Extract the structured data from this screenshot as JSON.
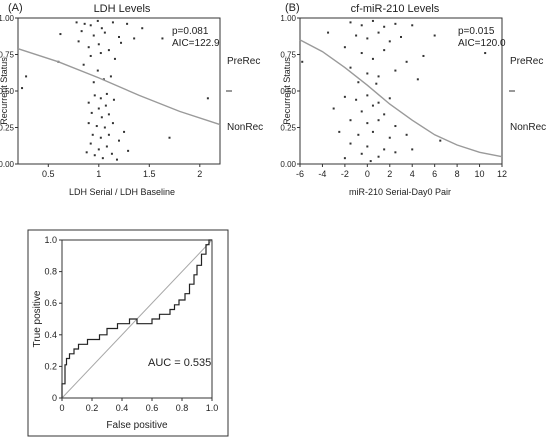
{
  "chart_data": [
    {
      "type": "scatter",
      "panel": "(A)",
      "title": "LDH Levels",
      "xlabel": "LDH Serial / LDH Baseline",
      "ylabel": "Recurrent Status",
      "xlim": [
        0.2,
        2.2
      ],
      "ylim": [
        0,
        1
      ],
      "xticks": [
        0.5,
        1,
        1.5,
        2
      ],
      "xtick_labels": [
        "0.5",
        "1",
        "1.5",
        "2"
      ],
      "yticks": [
        0,
        0.25,
        0.5,
        0.75,
        1
      ],
      "ytick_labels": [
        "0.00",
        "0.25",
        "0.50",
        "0.75",
        "1.00"
      ],
      "stats": [
        "p=0.081",
        "AIC=122.9"
      ],
      "right_labels": [
        "PreRec",
        "NonRec"
      ],
      "divider_at": 0.5,
      "points": [
        {
          "x": 0.78,
          "y": 0.97
        },
        {
          "x": 0.86,
          "y": 0.96
        },
        {
          "x": 0.92,
          "y": 0.95
        },
        {
          "x": 0.99,
          "y": 0.98
        },
        {
          "x": 1.03,
          "y": 0.93
        },
        {
          "x": 1.14,
          "y": 0.97
        },
        {
          "x": 1.28,
          "y": 0.96
        },
        {
          "x": 1.43,
          "y": 0.93
        },
        {
          "x": 0.83,
          "y": 0.91
        },
        {
          "x": 0.95,
          "y": 0.88
        },
        {
          "x": 1.06,
          "y": 0.9
        },
        {
          "x": 1.2,
          "y": 0.87
        },
        {
          "x": 0.8,
          "y": 0.84
        },
        {
          "x": 0.9,
          "y": 0.8
        },
        {
          "x": 1.0,
          "y": 0.82
        },
        {
          "x": 1.1,
          "y": 0.78
        },
        {
          "x": 1.22,
          "y": 0.83
        },
        {
          "x": 1.35,
          "y": 0.86
        },
        {
          "x": 1.63,
          "y": 0.86
        },
        {
          "x": 0.62,
          "y": 0.89
        },
        {
          "x": 0.92,
          "y": 0.74
        },
        {
          "x": 1.02,
          "y": 0.76
        },
        {
          "x": 1.16,
          "y": 0.72
        },
        {
          "x": 0.6,
          "y": 0.7
        },
        {
          "x": 0.85,
          "y": 0.68
        },
        {
          "x": 0.99,
          "y": 0.64
        },
        {
          "x": 1.12,
          "y": 0.6
        },
        {
          "x": 0.28,
          "y": 0.6
        },
        {
          "x": 0.95,
          "y": 0.56
        },
        {
          "x": 1.05,
          "y": 0.58
        },
        {
          "x": 0.96,
          "y": 0.47
        },
        {
          "x": 1.02,
          "y": 0.45
        },
        {
          "x": 1.08,
          "y": 0.48
        },
        {
          "x": 1.15,
          "y": 0.44
        },
        {
          "x": 0.24,
          "y": 0.52
        },
        {
          "x": 2.08,
          "y": 0.45
        },
        {
          "x": 0.9,
          "y": 0.42
        },
        {
          "x": 1.0,
          "y": 0.38
        },
        {
          "x": 1.07,
          "y": 0.4
        },
        {
          "x": 0.93,
          "y": 0.35
        },
        {
          "x": 1.03,
          "y": 0.32
        },
        {
          "x": 1.1,
          "y": 0.34
        },
        {
          "x": 0.9,
          "y": 0.28
        },
        {
          "x": 0.98,
          "y": 0.26
        },
        {
          "x": 1.06,
          "y": 0.25
        },
        {
          "x": 1.14,
          "y": 0.28
        },
        {
          "x": 1.25,
          "y": 0.22
        },
        {
          "x": 0.94,
          "y": 0.2
        },
        {
          "x": 1.02,
          "y": 0.18
        },
        {
          "x": 1.1,
          "y": 0.2
        },
        {
          "x": 1.2,
          "y": 0.16
        },
        {
          "x": 1.7,
          "y": 0.18
        },
        {
          "x": 0.92,
          "y": 0.14
        },
        {
          "x": 1.0,
          "y": 0.1
        },
        {
          "x": 1.08,
          "y": 0.12
        },
        {
          "x": 0.96,
          "y": 0.06
        },
        {
          "x": 1.04,
          "y": 0.04
        },
        {
          "x": 1.13,
          "y": 0.07
        },
        {
          "x": 0.88,
          "y": 0.08
        },
        {
          "x": 1.18,
          "y": 0.03
        },
        {
          "x": 1.29,
          "y": 0.09
        }
      ],
      "fit_curve": [
        {
          "x": 0.2,
          "y": 0.79
        },
        {
          "x": 0.6,
          "y": 0.7
        },
        {
          "x": 1.0,
          "y": 0.59
        },
        {
          "x": 1.4,
          "y": 0.47
        },
        {
          "x": 1.8,
          "y": 0.36
        },
        {
          "x": 2.2,
          "y": 0.27
        }
      ]
    },
    {
      "type": "scatter",
      "panel": "(B)",
      "title": "cf-miR-210 Levels",
      "xlabel": "miR-210 Serial-Day0 Pair",
      "ylabel": "Recurrent Status",
      "xlim": [
        -6,
        12
      ],
      "ylim": [
        0,
        1
      ],
      "xticks": [
        -6,
        -4,
        -2,
        0,
        2,
        4,
        6,
        8,
        10,
        12
      ],
      "xtick_labels": [
        "-6",
        "-4",
        "-2",
        "0",
        "2",
        "4",
        "6",
        "8",
        "10",
        "12"
      ],
      "yticks": [
        0,
        0.25,
        0.5,
        0.75,
        1
      ],
      "ytick_labels": [
        "0.00",
        "0.25",
        "0.50",
        "0.75",
        "1.00"
      ],
      "stats": [
        "p=0.015",
        "AIC=120.0"
      ],
      "right_labels": [
        "PreRec",
        "NonRec"
      ],
      "divider_at": 0.5,
      "points": [
        {
          "x": -1.5,
          "y": 0.97
        },
        {
          "x": -0.5,
          "y": 0.95
        },
        {
          "x": 0.5,
          "y": 0.98
        },
        {
          "x": 1.5,
          "y": 0.94
        },
        {
          "x": 2.5,
          "y": 0.96
        },
        {
          "x": 4.0,
          "y": 0.95
        },
        {
          "x": -3.5,
          "y": 0.9
        },
        {
          "x": -1.0,
          "y": 0.88
        },
        {
          "x": 0.0,
          "y": 0.86
        },
        {
          "x": 1.0,
          "y": 0.9
        },
        {
          "x": 2.0,
          "y": 0.84
        },
        {
          "x": 3.0,
          "y": 0.87
        },
        {
          "x": 6.0,
          "y": 0.88
        },
        {
          "x": 10.5,
          "y": 0.76
        },
        {
          "x": -2.0,
          "y": 0.8
        },
        {
          "x": -0.5,
          "y": 0.76
        },
        {
          "x": 0.5,
          "y": 0.72
        },
        {
          "x": 1.5,
          "y": 0.78
        },
        {
          "x": 3.5,
          "y": 0.7
        },
        {
          "x": 5.0,
          "y": 0.74
        },
        {
          "x": -1.5,
          "y": 0.66
        },
        {
          "x": 0.0,
          "y": 0.62
        },
        {
          "x": 1.0,
          "y": 0.6
        },
        {
          "x": 2.5,
          "y": 0.64
        },
        {
          "x": -5.8,
          "y": 0.7
        },
        {
          "x": -0.8,
          "y": 0.56
        },
        {
          "x": 0.8,
          "y": 0.55
        },
        {
          "x": 4.5,
          "y": 0.58
        },
        {
          "x": -2.0,
          "y": 0.46
        },
        {
          "x": -1.0,
          "y": 0.44
        },
        {
          "x": 0.0,
          "y": 0.47
        },
        {
          "x": 1.0,
          "y": 0.42
        },
        {
          "x": 2.0,
          "y": 0.45
        },
        {
          "x": -3.0,
          "y": 0.38
        },
        {
          "x": -0.5,
          "y": 0.36
        },
        {
          "x": 0.5,
          "y": 0.4
        },
        {
          "x": 1.5,
          "y": 0.34
        },
        {
          "x": -1.5,
          "y": 0.3
        },
        {
          "x": 0.0,
          "y": 0.28
        },
        {
          "x": 1.0,
          "y": 0.3
        },
        {
          "x": 2.5,
          "y": 0.26
        },
        {
          "x": -2.5,
          "y": 0.22
        },
        {
          "x": -0.8,
          "y": 0.2
        },
        {
          "x": 0.5,
          "y": 0.22
        },
        {
          "x": 2.0,
          "y": 0.18
        },
        {
          "x": 3.5,
          "y": 0.2
        },
        {
          "x": 6.5,
          "y": 0.16
        },
        {
          "x": -1.5,
          "y": 0.14
        },
        {
          "x": 0.0,
          "y": 0.12
        },
        {
          "x": 1.5,
          "y": 0.1
        },
        {
          "x": -0.5,
          "y": 0.07
        },
        {
          "x": 1.0,
          "y": 0.05
        },
        {
          "x": 2.5,
          "y": 0.08
        },
        {
          "x": -2.0,
          "y": 0.04
        },
        {
          "x": 0.3,
          "y": 0.02
        },
        {
          "x": 4.0,
          "y": 0.1
        }
      ],
      "fit_curve": [
        {
          "x": -6,
          "y": 0.85
        },
        {
          "x": -4,
          "y": 0.77
        },
        {
          "x": -2,
          "y": 0.66
        },
        {
          "x": 0,
          "y": 0.54
        },
        {
          "x": 2,
          "y": 0.41
        },
        {
          "x": 4,
          "y": 0.3
        },
        {
          "x": 6,
          "y": 0.2
        },
        {
          "x": 8,
          "y": 0.13
        },
        {
          "x": 10,
          "y": 0.08
        },
        {
          "x": 12,
          "y": 0.05
        }
      ]
    },
    {
      "type": "line",
      "title": "",
      "xlabel": "False positive",
      "ylabel": "True positive",
      "xlim": [
        0,
        1
      ],
      "ylim": [
        0,
        1
      ],
      "xticks": [
        0,
        0.2,
        0.4,
        0.6,
        0.8,
        1.0
      ],
      "xtick_labels": [
        "0",
        "0.2",
        "0.4",
        "0.6",
        "0.8",
        "1.0"
      ],
      "yticks": [
        0,
        0.2,
        0.4,
        0.6,
        0.8,
        1.0
      ],
      "ytick_labels": [
        "0",
        "0.2",
        "0.4",
        "0.6",
        "0.8",
        "1.0"
      ],
      "annotation": "AUC = 0.535",
      "diagonal": [
        [
          0,
          0
        ],
        [
          1,
          1
        ]
      ],
      "roc": [
        [
          0,
          0
        ],
        [
          0,
          0.09
        ],
        [
          0.02,
          0.09
        ],
        [
          0.02,
          0.21
        ],
        [
          0.03,
          0.21
        ],
        [
          0.03,
          0.25
        ],
        [
          0.05,
          0.25
        ],
        [
          0.05,
          0.28
        ],
        [
          0.08,
          0.28
        ],
        [
          0.08,
          0.31
        ],
        [
          0.11,
          0.31
        ],
        [
          0.11,
          0.34
        ],
        [
          0.17,
          0.34
        ],
        [
          0.17,
          0.37
        ],
        [
          0.25,
          0.37
        ],
        [
          0.25,
          0.4
        ],
        [
          0.3,
          0.4
        ],
        [
          0.3,
          0.44
        ],
        [
          0.37,
          0.44
        ],
        [
          0.37,
          0.47
        ],
        [
          0.45,
          0.47
        ],
        [
          0.45,
          0.5
        ],
        [
          0.5,
          0.5
        ],
        [
          0.5,
          0.47
        ],
        [
          0.6,
          0.47
        ],
        [
          0.6,
          0.5
        ],
        [
          0.65,
          0.5
        ],
        [
          0.65,
          0.53
        ],
        [
          0.72,
          0.53
        ],
        [
          0.72,
          0.56
        ],
        [
          0.75,
          0.56
        ],
        [
          0.75,
          0.59
        ],
        [
          0.78,
          0.59
        ],
        [
          0.78,
          0.62
        ],
        [
          0.82,
          0.62
        ],
        [
          0.82,
          0.66
        ],
        [
          0.85,
          0.66
        ],
        [
          0.85,
          0.72
        ],
        [
          0.88,
          0.72
        ],
        [
          0.88,
          0.78
        ],
        [
          0.9,
          0.78
        ],
        [
          0.9,
          0.84
        ],
        [
          0.93,
          0.84
        ],
        [
          0.93,
          0.91
        ],
        [
          0.96,
          0.91
        ],
        [
          0.96,
          0.97
        ],
        [
          0.98,
          0.97
        ],
        [
          0.98,
          1.0
        ],
        [
          1.0,
          1.0
        ]
      ]
    }
  ]
}
